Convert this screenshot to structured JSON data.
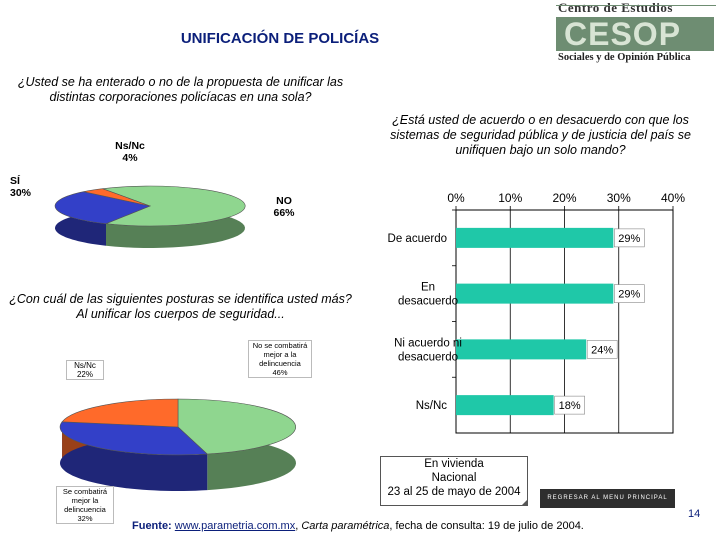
{
  "header": {
    "title": "UNIFICACIÓN DE POLICÍAS",
    "logo_top": "Centro de Estudios",
    "logo_mark": "CESOP",
    "logo_bottom": "Sociales y de Opinión Pública"
  },
  "questions": {
    "q1": "¿Usted se ha enterado o no de la propuesta de unificar las distintas corporaciones policíacas en una sola?",
    "q2": "¿Con cuál de las siguientes posturas se identifica usted más? Al unificar los cuerpos de seguridad...",
    "q3": "¿Está usted de acuerdo o en desacuerdo con que los sistemas de seguridad pública y de justicia del país se unifiquen bajo un solo mando?"
  },
  "chart_data": [
    {
      "type": "pie",
      "title": "¿Usted se ha enterado o no de la propuesta de unificar las distintas corporaciones policíacas en una sola?",
      "slices": [
        {
          "label": "NO",
          "value": 66,
          "text": "66%",
          "color": "#8fd68f"
        },
        {
          "label": "SÍ",
          "value": 30,
          "text": "30%",
          "color": "#3340c8"
        },
        {
          "label": "Ns/Nc",
          "value": 4,
          "text": "4%",
          "color": "#ff6a2a"
        }
      ]
    },
    {
      "type": "pie",
      "title": "¿Con cuál de las siguientes posturas se identifica usted más? Al unificar los cuerpos de seguridad...",
      "slices": [
        {
          "label": "No se combatirá mejor a la delincuencia",
          "value": 46,
          "text": "46%",
          "color": "#8fd68f"
        },
        {
          "label": "Se combatirá mejor la delincuencia",
          "value": 32,
          "text": "32%",
          "color": "#3340c8"
        },
        {
          "label": "Ns/Nc",
          "value": 22,
          "text": "22%",
          "color": "#ff6a2a"
        }
      ]
    },
    {
      "type": "bar",
      "orientation": "horizontal",
      "title": "¿Está usted de acuerdo o en desacuerdo con que los sistemas de seguridad pública y de justicia del país se unifiquen bajo un solo mando?",
      "categories": [
        "De acuerdo",
        "En desacuerdo",
        "Ni acuerdo ni desacuerdo",
        "Ns/Nc"
      ],
      "category_lines": [
        [
          "De acuerdo"
        ],
        [
          "En",
          "desacuerdo"
        ],
        [
          "Ni acuerdo ni",
          "desacuerdo"
        ],
        [
          "Ns/Nc"
        ]
      ],
      "values": [
        29,
        29,
        24,
        18
      ],
      "labels": [
        "29%",
        "29%",
        "24%",
        "18%"
      ],
      "xlim": [
        0,
        40
      ],
      "ticks": [
        "0%",
        "10%",
        "20%",
        "30%",
        "40%"
      ],
      "bar_color": "#1fc8a8",
      "grid": true
    }
  ],
  "source_box": {
    "line1": "En vivienda",
    "line2": "Nacional",
    "line3": "23 al 25 de mayo de 2004"
  },
  "back_button": "REGRESAR AL MENU PRINCIPAL",
  "footer": {
    "fuente_label": "Fuente:",
    "url": "www.parametria.com.mx",
    "sep": ",",
    "publication": "Carta paramétrica",
    "rest": ", fecha de consulta: 19 de julio de 2004."
  },
  "page_number": "14"
}
